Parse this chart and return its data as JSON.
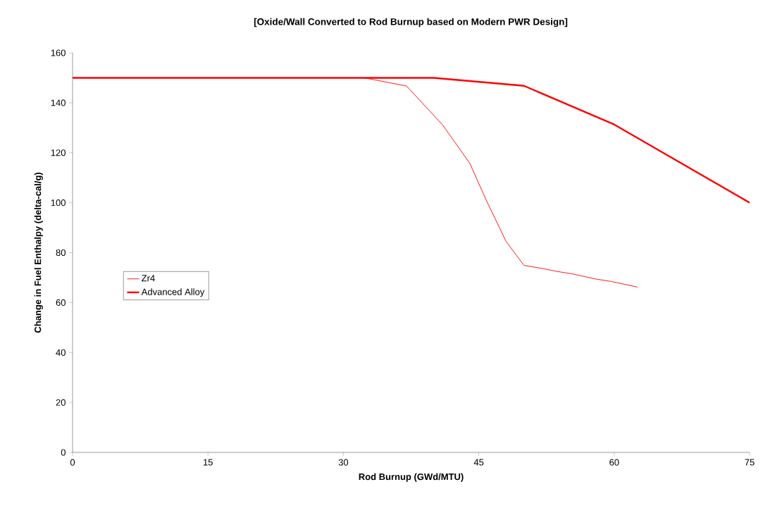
{
  "chart_data": {
    "type": "line",
    "title": "[Oxide/Wall Converted to Rod Burnup based on Modern PWR Design]",
    "xlabel": "Rod Burnup (GWd/MTU)",
    "ylabel": "Change in Fuel Enthalpy (delta-cal/g)",
    "xlim": [
      0,
      75
    ],
    "xticks": [
      0,
      15,
      30,
      45,
      60,
      75
    ],
    "ylim": [
      0,
      160
    ],
    "yticks": [
      0,
      20,
      40,
      60,
      80,
      100,
      120,
      140,
      160
    ],
    "grid": false,
    "legend": "left",
    "marker": "none",
    "line_style": "solid",
    "series": [
      {
        "name": "Zr4",
        "color": "#ff0000",
        "x": [
          0,
          32.3,
          37.0,
          41.0,
          44.0,
          45.8,
          48.0,
          50.0,
          52.1,
          53.6,
          55.2,
          58.0,
          59.6,
          62.6
        ],
        "values": [
          150,
          150,
          146.7,
          131.1,
          115.8,
          101.2,
          84.6,
          74.9,
          73.6,
          72.5,
          71.6,
          69.4,
          68.5,
          66.2
        ]
      },
      {
        "name": "Advanced Alloy",
        "color": "#ff0000",
        "x": [
          0,
          40.0,
          50.0,
          60.0,
          75.0
        ],
        "values": [
          150,
          150,
          146.8,
          131.3,
          100
        ]
      }
    ]
  }
}
